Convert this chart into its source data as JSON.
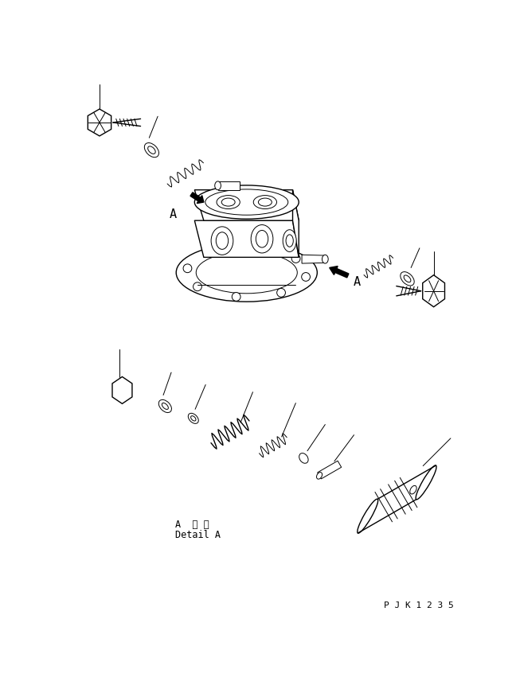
{
  "background_color": "#ffffff",
  "line_color": "#000000",
  "text_color": "#000000",
  "detail_label_text1": "A 詳 細",
  "detail_label_text2": "Detail A",
  "part_number": "P J K 1 2 3 5",
  "figsize": [
    6.48,
    8.66
  ],
  "dpi": 100
}
